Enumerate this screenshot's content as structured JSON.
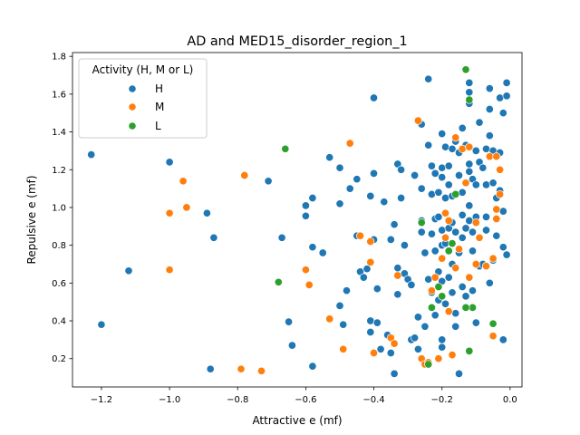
{
  "chart_data": {
    "type": "scatter",
    "title": "AD and MED15_disorder_region_1",
    "xlabel": "Attractive e (mf)",
    "ylabel": "Repulsive e (mf)",
    "xlim": [
      -1.285,
      0.035
    ],
    "ylim": [
      0.05,
      1.82
    ],
    "xticks": [
      -1.2,
      -1.0,
      -0.8,
      -0.6,
      -0.4,
      -0.2,
      0.0
    ],
    "xtick_labels": [
      "−1.2",
      "−1.0",
      "−0.8",
      "−0.6",
      "−0.4",
      "−0.2",
      "0.0"
    ],
    "yticks": [
      0.2,
      0.4,
      0.6,
      0.8,
      1.0,
      1.2,
      1.4,
      1.6,
      1.8
    ],
    "ytick_labels": [
      "0.2",
      "0.4",
      "0.6",
      "0.8",
      "1.0",
      "1.2",
      "1.4",
      "1.6",
      "1.8"
    ],
    "legend": {
      "title": "Activity (H, M or L)",
      "placement": "top-left"
    },
    "grid": false,
    "series": [
      {
        "name": "H",
        "color": "#1f77b4",
        "points": [
          [
            -1.23,
            1.28
          ],
          [
            -1.2,
            0.38
          ],
          [
            -1.12,
            0.665
          ],
          [
            -1.0,
            1.24
          ],
          [
            -0.89,
            0.97
          ],
          [
            -0.87,
            0.84
          ],
          [
            -0.88,
            0.145
          ],
          [
            -0.71,
            1.14
          ],
          [
            -0.67,
            0.84
          ],
          [
            -0.65,
            0.395
          ],
          [
            -0.64,
            0.27
          ],
          [
            -0.6,
            1.01
          ],
          [
            -0.6,
            0.955
          ],
          [
            -0.58,
            1.05
          ],
          [
            -0.58,
            0.79
          ],
          [
            -0.58,
            0.16
          ],
          [
            -0.55,
            0.76
          ],
          [
            -0.53,
            1.265
          ],
          [
            -0.5,
            1.21
          ],
          [
            -0.5,
            1.02
          ],
          [
            -0.5,
            0.48
          ],
          [
            -0.49,
            0.38
          ],
          [
            -0.49,
            0.25
          ],
          [
            -0.48,
            0.56
          ],
          [
            -0.47,
            1.1
          ],
          [
            -0.45,
            1.15
          ],
          [
            -0.45,
            0.85
          ],
          [
            -0.44,
            0.66
          ],
          [
            -0.43,
            0.63
          ],
          [
            -0.42,
            0.675
          ],
          [
            -0.41,
            1.06
          ],
          [
            -0.41,
            0.4
          ],
          [
            -0.41,
            0.34
          ],
          [
            -0.4,
            1.58
          ],
          [
            -0.4,
            1.18
          ],
          [
            -0.4,
            0.83
          ],
          [
            -0.39,
            0.57
          ],
          [
            -0.39,
            0.39
          ],
          [
            -0.38,
            0.25
          ],
          [
            -0.37,
            1.03
          ],
          [
            -0.36,
            0.325
          ],
          [
            -0.35,
            0.83
          ],
          [
            -0.35,
            0.23
          ],
          [
            -0.34,
            0.12
          ],
          [
            -0.34,
            0.91
          ],
          [
            -0.33,
            1.23
          ],
          [
            -0.33,
            0.68
          ],
          [
            -0.33,
            0.54
          ],
          [
            -0.32,
            1.2
          ],
          [
            -0.32,
            1.05
          ],
          [
            -0.31,
            0.8
          ],
          [
            -0.31,
            0.65
          ],
          [
            -0.3,
            0.62
          ],
          [
            -0.29,
            0.59
          ],
          [
            -0.29,
            0.3
          ],
          [
            -0.28,
            1.17
          ],
          [
            -0.28,
            0.31
          ],
          [
            -0.27,
            0.42
          ],
          [
            -0.27,
            0.25
          ],
          [
            -0.26,
            1.44
          ],
          [
            -0.26,
            1.1
          ],
          [
            -0.26,
            0.93
          ],
          [
            -0.26,
            0.87
          ],
          [
            -0.25,
            0.37
          ],
          [
            -0.25,
            0.76
          ],
          [
            -0.24,
            1.68
          ],
          [
            -0.24,
            1.33
          ],
          [
            -0.24,
            0.62
          ],
          [
            -0.23,
            1.22
          ],
          [
            -0.23,
            1.07
          ],
          [
            -0.23,
            0.86
          ],
          [
            -0.23,
            0.55
          ],
          [
            -0.22,
            0.43
          ],
          [
            -0.22,
            1.18
          ],
          [
            -0.22,
            0.94
          ],
          [
            -0.22,
            0.77
          ],
          [
            -0.21,
            1.08
          ],
          [
            -0.21,
            0.95
          ],
          [
            -0.21,
            0.66
          ],
          [
            -0.21,
            0.51
          ],
          [
            -0.2,
            1.21
          ],
          [
            -0.2,
            1.16
          ],
          [
            -0.2,
            1.39
          ],
          [
            -0.2,
            0.88
          ],
          [
            -0.2,
            0.8
          ],
          [
            -0.2,
            0.61
          ],
          [
            -0.2,
            0.3
          ],
          [
            -0.2,
            0.26
          ],
          [
            -0.19,
            1.32
          ],
          [
            -0.19,
            1.05
          ],
          [
            -0.19,
            0.97
          ],
          [
            -0.19,
            0.81
          ],
          [
            -0.19,
            0.49
          ],
          [
            -0.18,
            1.22
          ],
          [
            -0.18,
            1.12
          ],
          [
            -0.18,
            0.89
          ],
          [
            -0.18,
            0.63
          ],
          [
            -0.17,
            1.31
          ],
          [
            -0.17,
            1.06
          ],
          [
            -0.17,
            0.92
          ],
          [
            -0.17,
            0.7
          ],
          [
            -0.17,
            0.55
          ],
          [
            -0.16,
            1.35
          ],
          [
            -0.16,
            0.87
          ],
          [
            -0.16,
            0.44
          ],
          [
            -0.16,
            0.37
          ],
          [
            -0.15,
            1.29
          ],
          [
            -0.15,
            1.17
          ],
          [
            -0.15,
            0.76
          ],
          [
            -0.15,
            0.12
          ],
          [
            -0.14,
            1.42
          ],
          [
            -0.14,
            1.08
          ],
          [
            -0.14,
            0.96
          ],
          [
            -0.14,
            0.84
          ],
          [
            -0.14,
            0.58
          ],
          [
            -0.13,
            1.33
          ],
          [
            -0.13,
            0.89
          ],
          [
            -0.13,
            0.53
          ],
          [
            -0.12,
            1.66
          ],
          [
            -0.12,
            1.61
          ],
          [
            -0.12,
            1.55
          ],
          [
            -0.12,
            1.23
          ],
          [
            -0.12,
            1.19
          ],
          [
            -0.12,
            1.01
          ],
          [
            -0.12,
            0.93
          ],
          [
            -0.11,
            0.56
          ],
          [
            -0.11,
            1.15
          ],
          [
            -0.11,
            0.87
          ],
          [
            -0.11,
            0.77
          ],
          [
            -0.1,
            1.3
          ],
          [
            -0.1,
            1.12
          ],
          [
            -0.1,
            0.95
          ],
          [
            -0.1,
            0.39
          ],
          [
            -0.09,
            1.45
          ],
          [
            -0.09,
            1.24
          ],
          [
            -0.09,
            0.69
          ],
          [
            -0.08,
            1.21
          ],
          [
            -0.08,
            0.7
          ],
          [
            -0.07,
            1.31
          ],
          [
            -0.07,
            1.12
          ],
          [
            -0.07,
            0.95
          ],
          [
            -0.07,
            0.88
          ],
          [
            -0.06,
            1.63
          ],
          [
            -0.06,
            1.52
          ],
          [
            -0.06,
            1.38
          ],
          [
            -0.06,
            0.6
          ],
          [
            -0.05,
            1.3
          ],
          [
            -0.05,
            1.13
          ],
          [
            -0.04,
            1.05
          ],
          [
            -0.04,
            0.85
          ],
          [
            -0.03,
            1.58
          ],
          [
            -0.03,
            1.29
          ],
          [
            -0.03,
            1.09
          ],
          [
            -0.02,
            1.5
          ],
          [
            -0.02,
            0.98
          ],
          [
            -0.02,
            0.79
          ],
          [
            -0.02,
            0.3
          ],
          [
            -0.01,
            1.66
          ],
          [
            -0.01,
            1.59
          ],
          [
            -0.01,
            0.75
          ],
          [
            -0.05,
            0.72
          ]
        ]
      },
      {
        "name": "M",
        "color": "#ff7f0e",
        "points": [
          [
            -1.0,
            0.97
          ],
          [
            -1.0,
            0.67
          ],
          [
            -0.96,
            1.14
          ],
          [
            -0.95,
            1.0
          ],
          [
            -0.78,
            1.17
          ],
          [
            -0.79,
            0.145
          ],
          [
            -0.73,
            0.135
          ],
          [
            -0.6,
            0.67
          ],
          [
            -0.59,
            0.59
          ],
          [
            -0.53,
            0.41
          ],
          [
            -0.49,
            0.25
          ],
          [
            -0.47,
            1.34
          ],
          [
            -0.44,
            0.85
          ],
          [
            -0.41,
            0.82
          ],
          [
            -0.41,
            0.71
          ],
          [
            -0.4,
            0.23
          ],
          [
            -0.35,
            0.31
          ],
          [
            -0.34,
            0.28
          ],
          [
            -0.33,
            0.64
          ],
          [
            -0.27,
            1.46
          ],
          [
            -0.26,
            0.2
          ],
          [
            -0.25,
            0.17
          ],
          [
            -0.24,
            0.18
          ],
          [
            -0.23,
            0.56
          ],
          [
            -0.22,
            0.63
          ],
          [
            -0.21,
            0.2
          ],
          [
            -0.2,
            0.73
          ],
          [
            -0.19,
            0.97
          ],
          [
            -0.19,
            0.84
          ],
          [
            -0.18,
            0.93
          ],
          [
            -0.18,
            0.45
          ],
          [
            -0.17,
            0.22
          ],
          [
            -0.16,
            1.37
          ],
          [
            -0.16,
            0.68
          ],
          [
            -0.15,
            0.78
          ],
          [
            -0.14,
            1.31
          ],
          [
            -0.13,
            1.13
          ],
          [
            -0.12,
            1.32
          ],
          [
            -0.1,
            0.92
          ],
          [
            -0.1,
            0.7
          ],
          [
            -0.09,
            0.84
          ],
          [
            -0.07,
            0.69
          ],
          [
            -0.06,
            1.27
          ],
          [
            -0.05,
            0.73
          ],
          [
            -0.05,
            0.32
          ],
          [
            -0.04,
            1.27
          ],
          [
            -0.04,
            0.99
          ],
          [
            -0.03,
            1.07
          ],
          [
            -0.03,
            1.2
          ],
          [
            -0.04,
            0.94
          ],
          [
            -0.12,
            0.63
          ]
        ]
      },
      {
        "name": "L",
        "color": "#2ca02c",
        "points": [
          [
            -0.66,
            1.31
          ],
          [
            -0.68,
            0.605
          ],
          [
            -0.26,
            0.92
          ],
          [
            -0.24,
            0.17
          ],
          [
            -0.23,
            0.47
          ],
          [
            -0.2,
            0.53
          ],
          [
            -0.18,
            0.77
          ],
          [
            -0.17,
            0.81
          ],
          [
            -0.16,
            1.07
          ],
          [
            -0.13,
            1.73
          ],
          [
            -0.12,
            1.57
          ],
          [
            -0.12,
            0.24
          ],
          [
            -0.11,
            0.47
          ],
          [
            -0.05,
            0.385
          ],
          [
            -0.13,
            0.47
          ],
          [
            -0.21,
            0.58
          ]
        ]
      }
    ]
  }
}
